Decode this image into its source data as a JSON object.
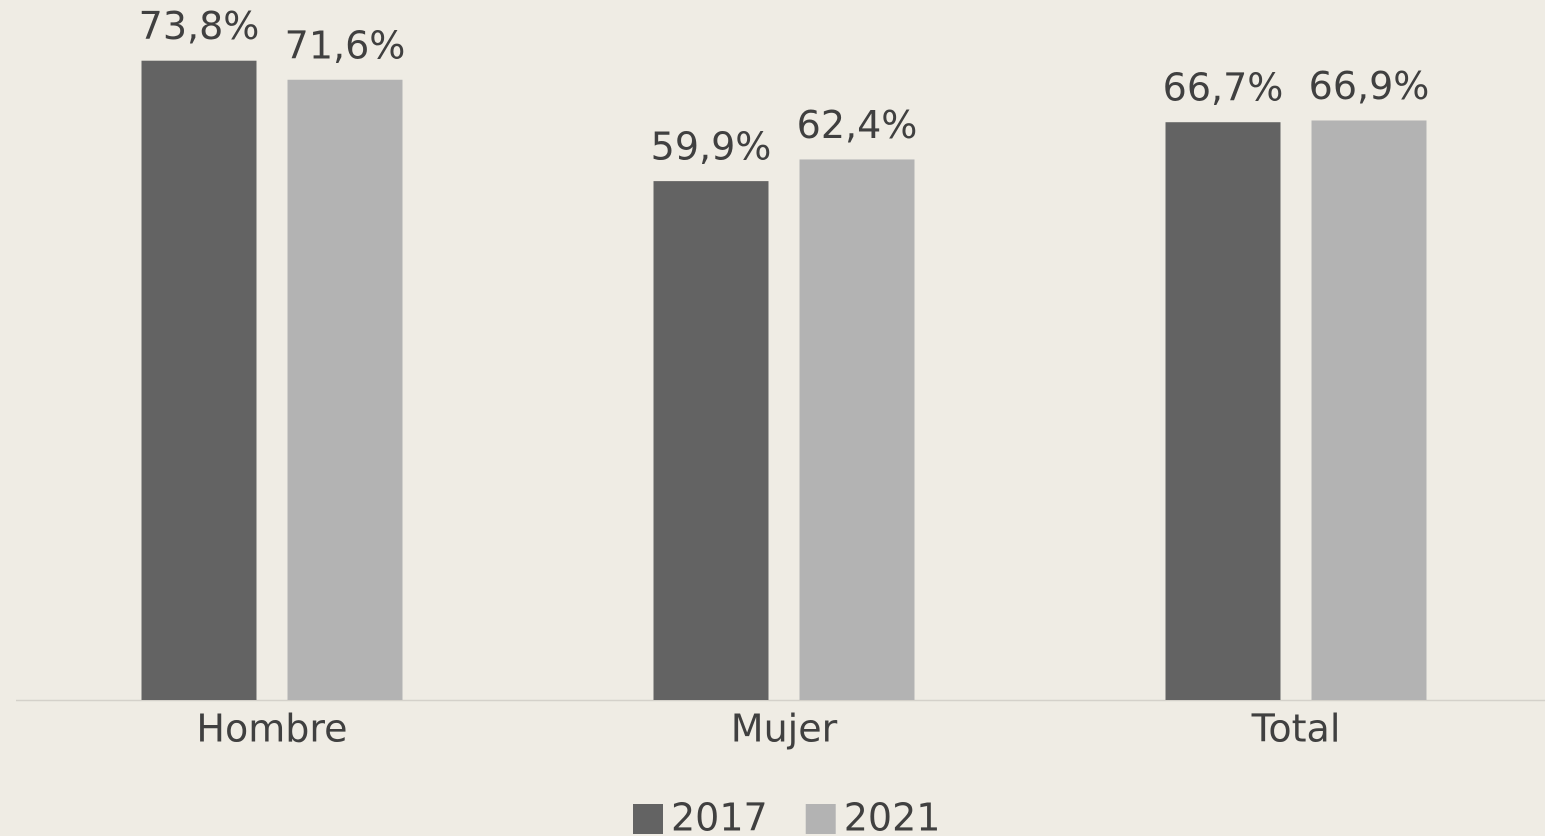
{
  "chart_data": {
    "type": "bar",
    "categories": [
      "Hombre",
      "Mujer",
      "Total"
    ],
    "series": [
      {
        "name": "2017",
        "color": "#636363",
        "values": [
          73.8,
          59.9,
          66.7
        ],
        "value_labels": [
          "73,8%",
          "59,9%",
          "66,7%"
        ]
      },
      {
        "name": "2021",
        "color": "#b3b3b3",
        "values": [
          71.6,
          62.4,
          66.9
        ],
        "value_labels": [
          "71,6%",
          "62,4%",
          "66,9%"
        ]
      }
    ],
    "ylim": [
      0,
      80
    ],
    "legend": "bottom"
  }
}
